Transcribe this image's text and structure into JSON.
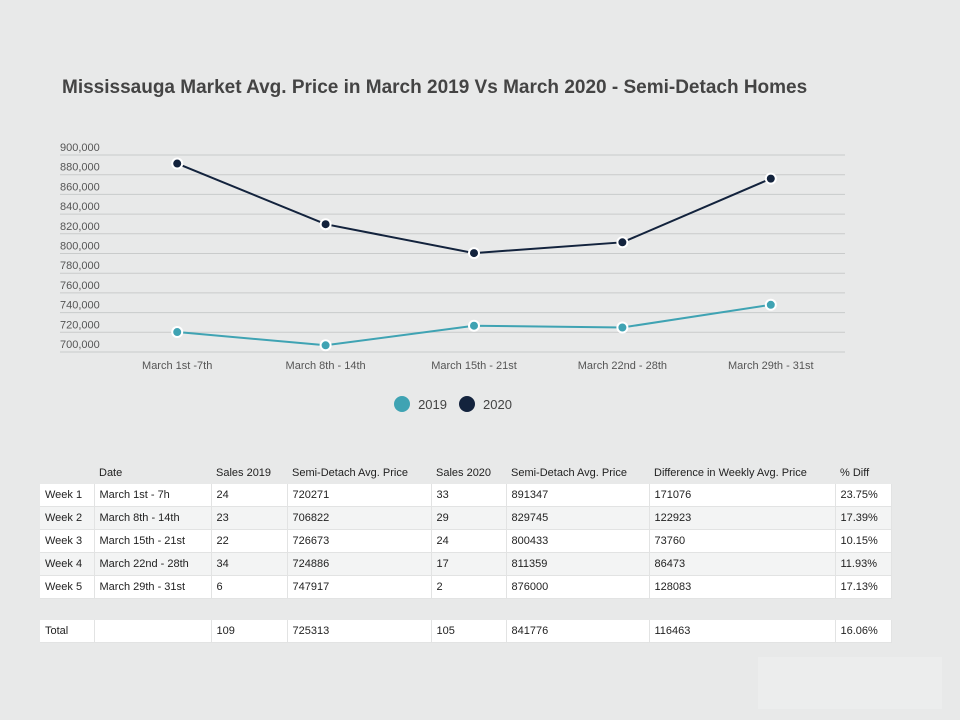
{
  "chart_data": {
    "type": "line",
    "title": "Mississauga Market Avg. Price in March 2019 Vs March 2020 - Semi-Detach Homes",
    "categories": [
      "March 1st -7th",
      "March 8th - 14th",
      "March 15th - 21st",
      "March 22nd - 28th",
      "March 29th - 31st"
    ],
    "series": [
      {
        "name": "2019",
        "color": "#3fa3b3",
        "values": [
          720271,
          706822,
          726673,
          724886,
          747917
        ]
      },
      {
        "name": "2020",
        "color": "#13233d",
        "values": [
          891347,
          829745,
          800433,
          811359,
          876000
        ]
      }
    ],
    "ylim": [
      700000,
      900000
    ],
    "yticks": [
      700000,
      720000,
      740000,
      760000,
      780000,
      800000,
      820000,
      840000,
      860000,
      880000,
      900000
    ],
    "ytick_labels": [
      "700,000",
      "720,000",
      "740,000",
      "760,000",
      "780,000",
      "800,000",
      "820,000",
      "840,000",
      "860,000",
      "880,000",
      "900,000"
    ],
    "xlabel": "",
    "ylabel": "",
    "grid": true,
    "legend_position": "bottom-center"
  },
  "table": {
    "headers": [
      "",
      "Date",
      "Sales 2019",
      "Semi-Detach Avg. Price",
      "Sales 2020",
      "Semi-Detach Avg. Price",
      "Difference in Weekly Avg. Price",
      "% Diff"
    ],
    "rows": [
      [
        "Week 1",
        "March 1st - 7h",
        "24",
        "720271",
        "33",
        "891347",
        "171076",
        "23.75%"
      ],
      [
        "Week 2",
        "March 8th - 14th",
        "23",
        "706822",
        "29",
        "829745",
        "122923",
        "17.39%"
      ],
      [
        "Week 3",
        "March 15th - 21st",
        "22",
        "726673",
        "24",
        "800433",
        "73760",
        "10.15%"
      ],
      [
        "Week 4",
        "March 22nd - 28th",
        "34",
        "724886",
        "17",
        "811359",
        "86473",
        "11.93%"
      ],
      [
        "Week 5",
        "March 29th - 31st",
        "6",
        "747917",
        "2",
        "876000",
        "128083",
        "17.13%"
      ]
    ],
    "total": [
      "Total",
      "",
      "109",
      "725313",
      "105",
      "841776",
      "116463",
      "16.06%"
    ]
  }
}
